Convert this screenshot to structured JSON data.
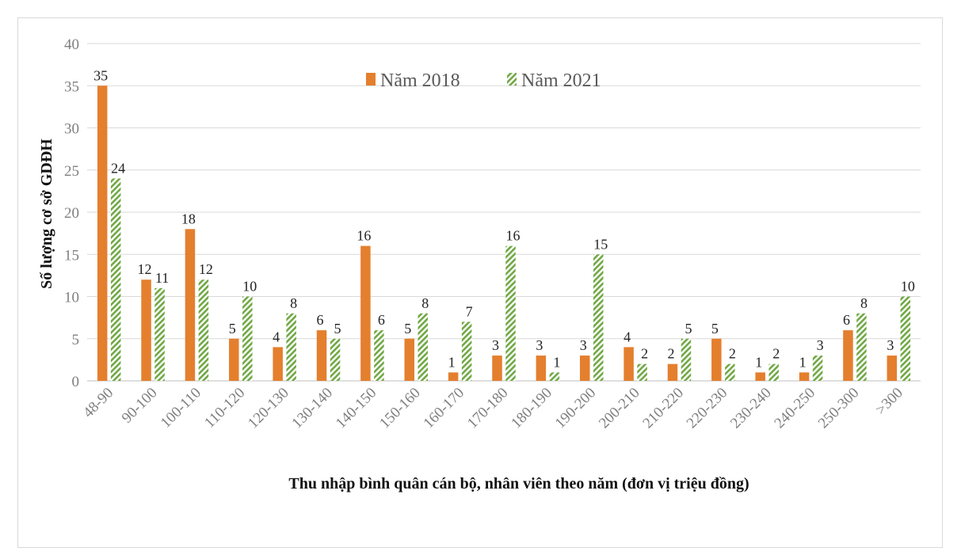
{
  "chart_data": {
    "type": "bar",
    "title": "",
    "xlabel": "Thu nhập bình quân cán bộ, nhân viên theo năm (đơn vị triệu đồng)",
    "ylabel": "Số lượng cơ sở GDĐH",
    "ylim": [
      0,
      40
    ],
    "yticks": [
      0,
      5,
      10,
      15,
      20,
      25,
      30,
      35,
      40
    ],
    "grid": true,
    "legend_position": "top-center",
    "categories": [
      "48-90",
      "90-100",
      "100-110",
      "110-120",
      "120-130",
      "130-140",
      "140-150",
      "150-160",
      "160-170",
      "170-180",
      "180-190",
      "190-200",
      "200-210",
      "210-220",
      "220-230",
      "230-240",
      "240-250",
      "250-300",
      ">300"
    ],
    "series": [
      {
        "name": "Năm 2018",
        "color": "#e47f2e",
        "pattern": "solid",
        "values": [
          35,
          12,
          18,
          5,
          4,
          6,
          16,
          5,
          1,
          3,
          3,
          3,
          4,
          2,
          5,
          1,
          1,
          6,
          3
        ]
      },
      {
        "name": "Năm 2021",
        "color": "#70a844",
        "pattern": "diagonal-hatch",
        "values": [
          24,
          11,
          12,
          10,
          8,
          5,
          6,
          8,
          7,
          16,
          1,
          15,
          2,
          5,
          2,
          2,
          3,
          8,
          10
        ]
      }
    ]
  }
}
